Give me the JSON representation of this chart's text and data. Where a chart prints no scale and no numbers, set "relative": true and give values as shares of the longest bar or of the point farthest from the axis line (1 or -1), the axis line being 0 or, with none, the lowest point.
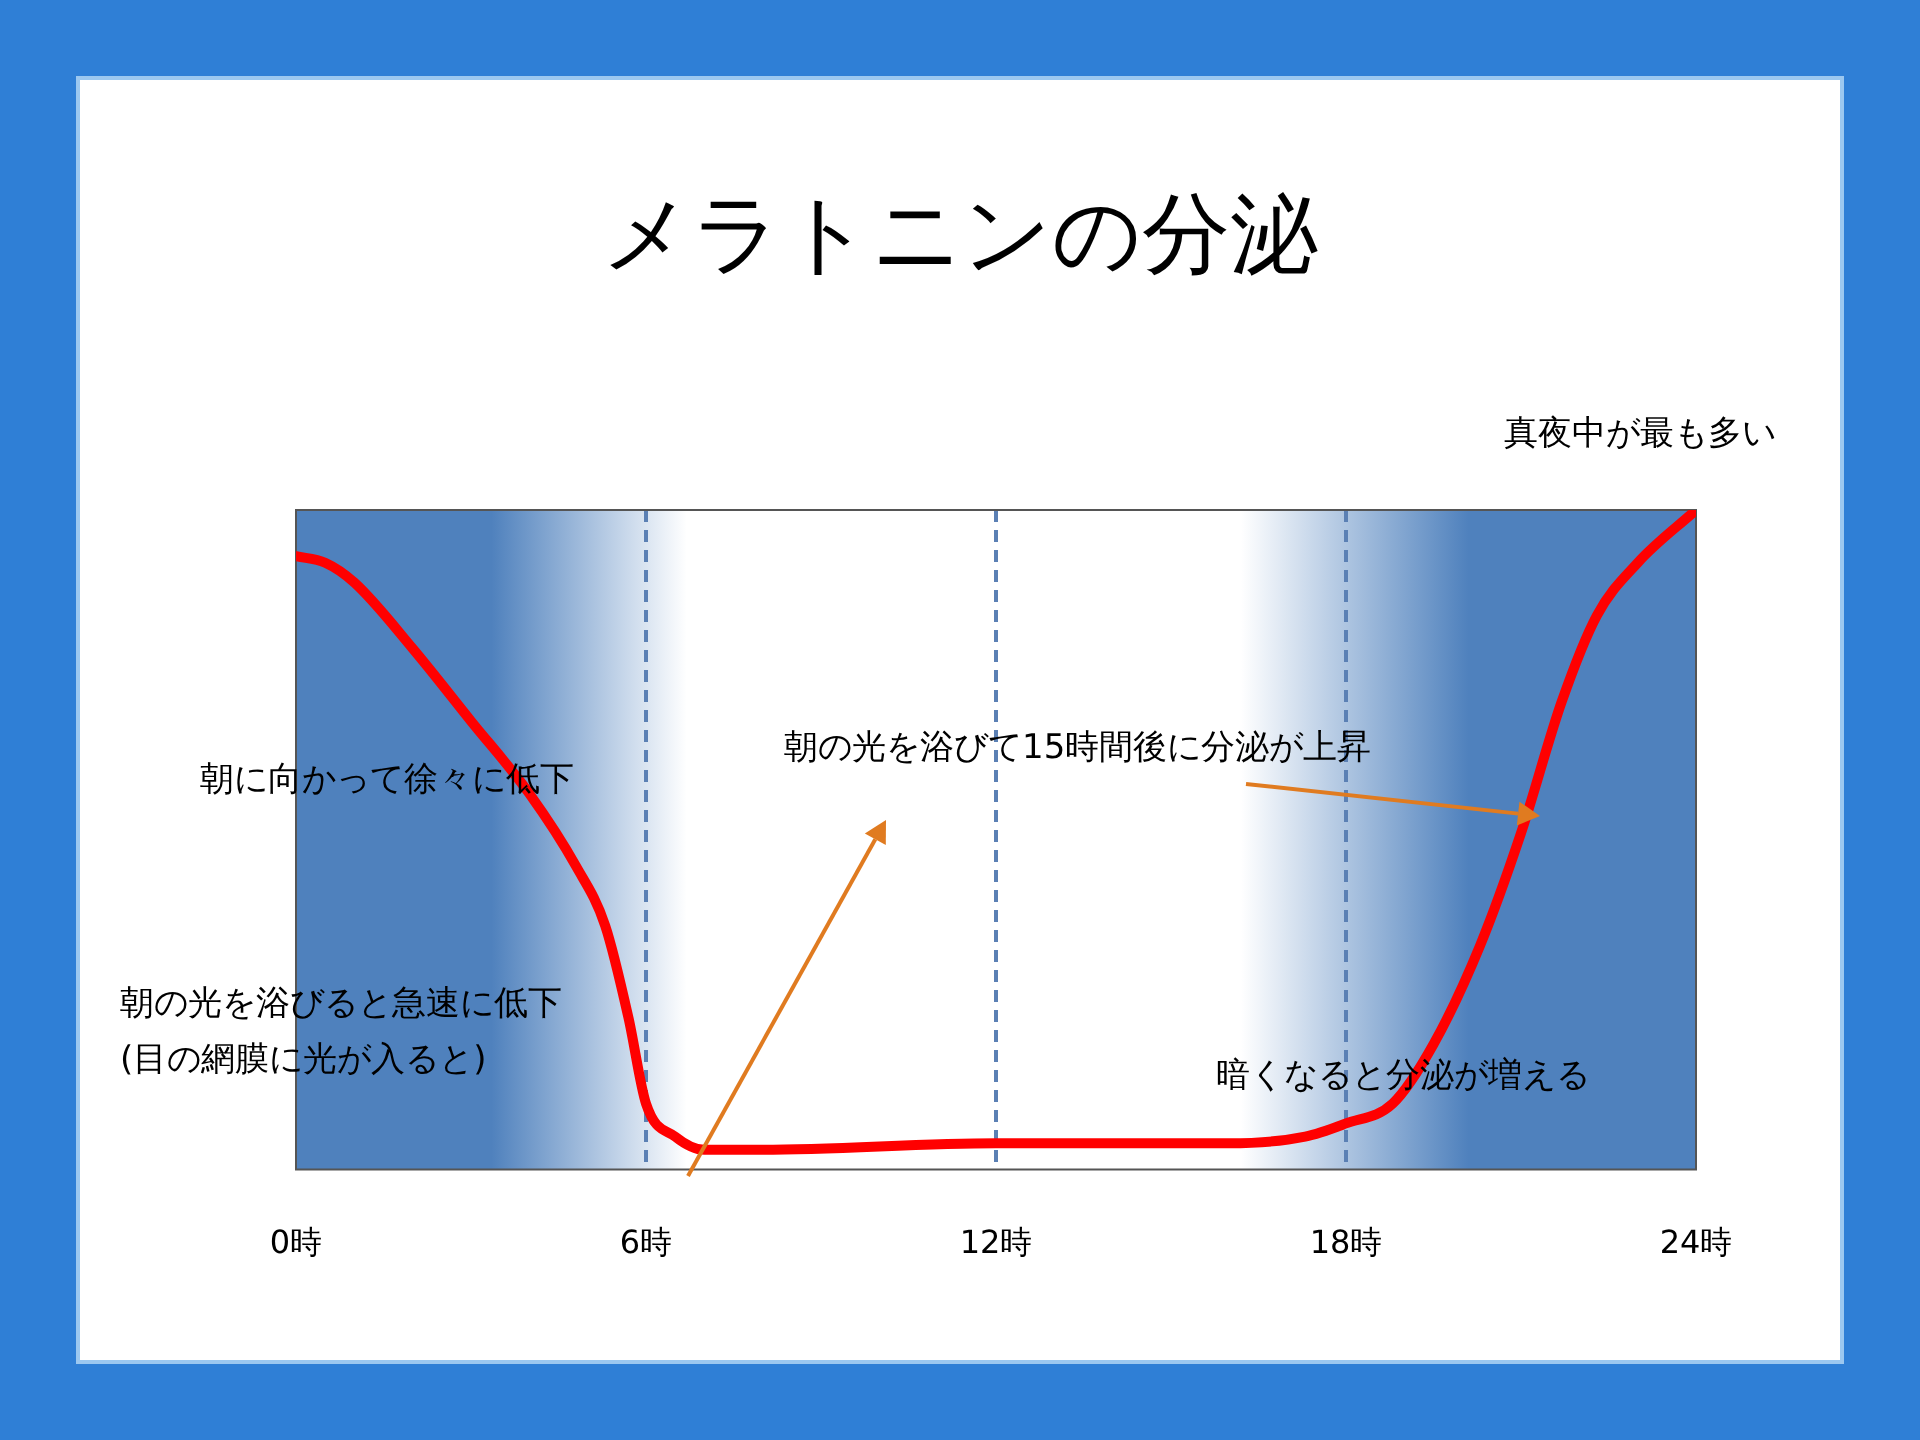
{
  "chart_data": {
    "type": "line",
    "title": "メラトニンの分泌",
    "relative": true,
    "x": [
      0,
      0.5,
      1,
      2,
      3,
      4,
      4.8,
      5.3,
      5.7,
      6,
      6.5,
      7,
      8,
      12,
      16,
      17.3,
      18,
      18.8,
      19.5,
      20.3,
      21,
      21.7,
      22.3,
      23,
      24
    ],
    "series": [
      {
        "color": "#ff0000",
        "values": [
          0.93,
          0.92,
          0.89,
          0.79,
          0.68,
          0.57,
          0.46,
          0.37,
          0.23,
          0.1,
          0.05,
          0.03,
          0.03,
          0.04,
          0.04,
          0.05,
          0.07,
          0.1,
          0.19,
          0.34,
          0.51,
          0.71,
          0.84,
          0.92,
          1
        ]
      }
    ],
    "xlim": [
      0,
      24
    ],
    "xticks": [
      {
        "value": 0,
        "label": "0時"
      },
      {
        "value": 6,
        "label": "6時"
      },
      {
        "value": 12,
        "label": "12時"
      },
      {
        "value": 18,
        "label": "18時"
      },
      {
        "value": 24,
        "label": "24時"
      }
    ],
    "bands": [
      {
        "axis": "x",
        "from": 0,
        "to": 6.7,
        "color": "#4f81bd"
      },
      {
        "axis": "x",
        "from": 16.2,
        "to": 24,
        "color": "#4f81bd"
      }
    ],
    "ref_lines": [
      {
        "axis": "x",
        "value": 6,
        "color": "#5b80b4",
        "line_style": "dashed"
      },
      {
        "axis": "x",
        "value": 12,
        "color": "#5b80b4",
        "line_style": "dashed"
      },
      {
        "axis": "x",
        "value": 18,
        "color": "#5b80b4",
        "line_style": "dashed"
      }
    ],
    "annotations": [
      {
        "text": "真夜中が最も多い",
        "x": 24,
        "y": 1
      },
      "朝に向かって徐々に低下",
      "朝の光を浴びると急速に低下",
      "(目の網膜に光が入ると)",
      "朝の光を浴びて15時間後に分泌が上昇",
      "暗くなると分泌が増える"
    ],
    "grid": false,
    "legend": false
  }
}
